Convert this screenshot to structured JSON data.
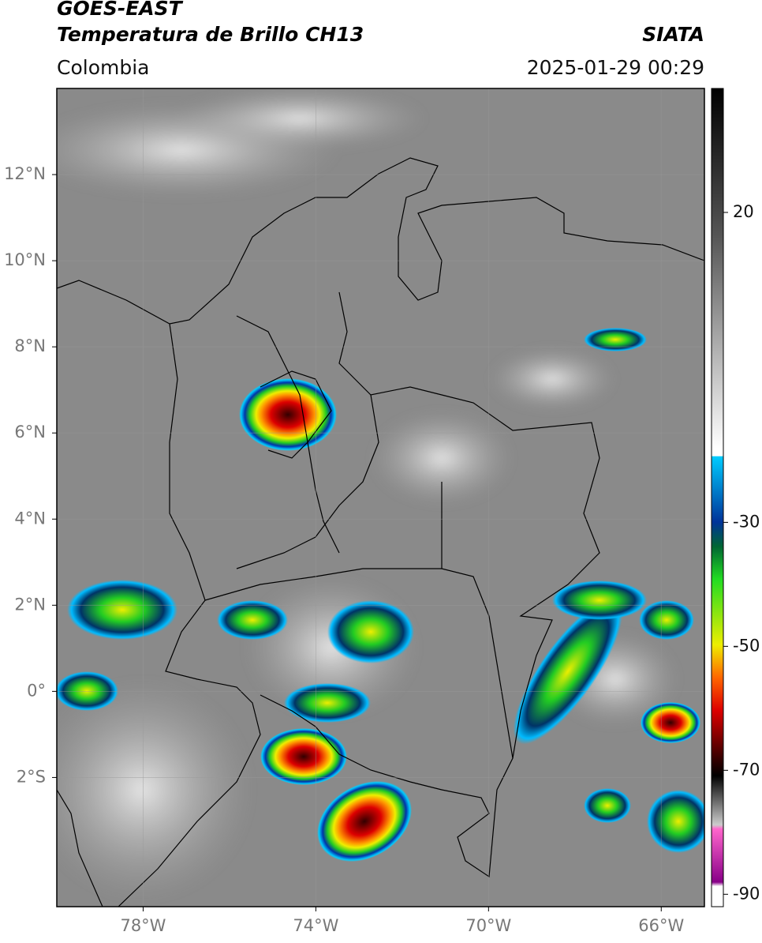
{
  "header": {
    "title": "GOES-EAST",
    "subtitle": "Temperatura de Brillo CH13",
    "source": "SIATA",
    "region": "Colombia",
    "timestamp": "2025-01-29 00:29"
  },
  "map": {
    "lon_range": [
      -80,
      -65
    ],
    "lat_range": [
      -5,
      14
    ],
    "lon_ticks": [
      {
        "value": -78,
        "label": "78°W"
      },
      {
        "value": -74,
        "label": "74°W"
      },
      {
        "value": -70,
        "label": "70°W"
      },
      {
        "value": -66,
        "label": "66°W"
      }
    ],
    "lat_ticks": [
      {
        "value": 12,
        "label": "12°N"
      },
      {
        "value": 10,
        "label": "10°N"
      },
      {
        "value": 8,
        "label": "8°N"
      },
      {
        "value": 6,
        "label": "6°N"
      },
      {
        "value": 4,
        "label": "4°N"
      },
      {
        "value": 2,
        "label": "2°N"
      },
      {
        "value": 0,
        "label": "0°"
      },
      {
        "value": -2,
        "label": "2°S"
      }
    ],
    "grid": true
  },
  "colorbar": {
    "range": [
      -92,
      40
    ],
    "ticks": [
      20,
      -30,
      -50,
      -70,
      -90
    ]
  }
}
